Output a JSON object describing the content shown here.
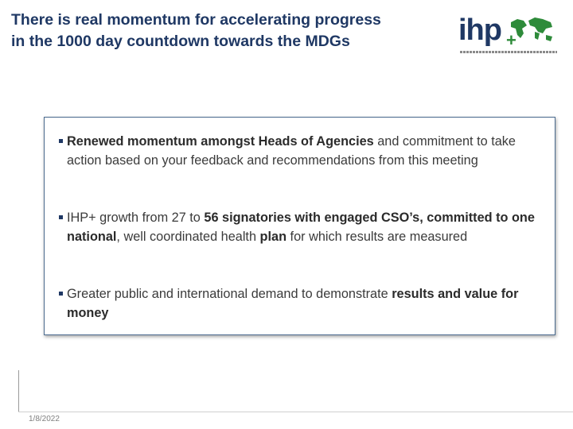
{
  "slide": {
    "title_line1": "There is real momentum for accelerating progress",
    "title_line2": "in the 1000 day countdown towards the MDGs",
    "logo": {
      "text": "ihp",
      "plus": "+",
      "icon": "world-map-icon"
    },
    "bullets": [
      {
        "parts": [
          {
            "bold": "Renewed momentum amongst Heads of Agencies"
          },
          {
            "text": " and commitment to take action based on your feedback and recommendations from this meeting"
          }
        ]
      },
      {
        "parts": [
          {
            "text": "IHP+ growth from 27 to "
          },
          {
            "bold": "56 signatories with engaged CSO’s, committed to one national"
          },
          {
            "text": ", well coordinated health "
          },
          {
            "bold": "plan"
          },
          {
            "text": " for which results are measured"
          }
        ]
      },
      {
        "parts": [
          {
            "text": "Greater public and international demand to demonstrate "
          },
          {
            "bold": "results and value for money"
          }
        ]
      }
    ],
    "footer_date": "1/8/2022"
  },
  "colors": {
    "title": "#1f3864",
    "logo_green": "#2e8b3a",
    "body_text": "#3b3b3b"
  }
}
